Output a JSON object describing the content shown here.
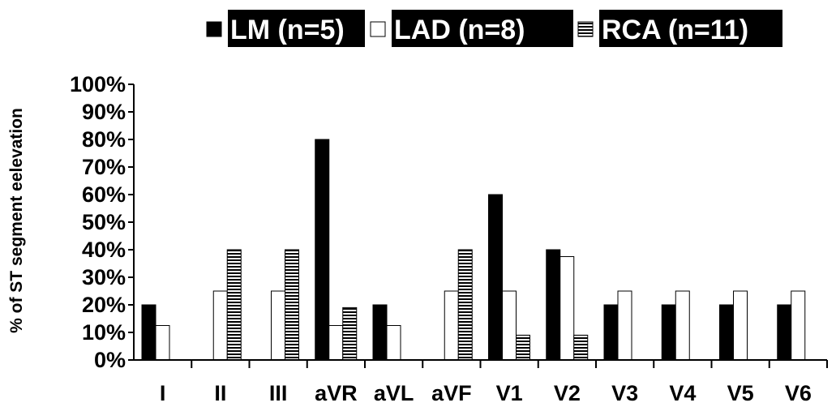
{
  "chart_data": {
    "type": "bar",
    "title": "",
    "xlabel": "",
    "ylabel": "% of ST segment  eelevation",
    "categories": [
      "I",
      "II",
      "III",
      "aVR",
      "aVL",
      "aVF",
      "V1",
      "V2",
      "V3",
      "V4",
      "V5",
      "V6"
    ],
    "y_ticks": [
      "0%",
      "10%",
      "20%",
      "30%",
      "40%",
      "50%",
      "60%",
      "70%",
      "80%",
      "90%",
      "100%"
    ],
    "ylim": [
      0,
      100
    ],
    "grid": false,
    "legend_position": "top",
    "series": [
      {
        "name": "LM (n=5)",
        "fill": "solid",
        "color": "#000000",
        "values": [
          20,
          0,
          0,
          80,
          20,
          0,
          60,
          40,
          20,
          20,
          20,
          20
        ]
      },
      {
        "name": "LAD (n=8)",
        "fill": "white",
        "color": "#ffffff",
        "values": [
          12.5,
          25,
          25,
          12.5,
          12.5,
          25,
          25,
          37.5,
          25,
          25,
          25,
          25
        ]
      },
      {
        "name": "RCA (n=11)",
        "fill": "horizontal-stripes",
        "color": "#000000",
        "values": [
          0,
          40,
          40,
          19,
          0,
          40,
          9,
          9,
          0,
          0,
          0,
          0
        ]
      }
    ]
  }
}
